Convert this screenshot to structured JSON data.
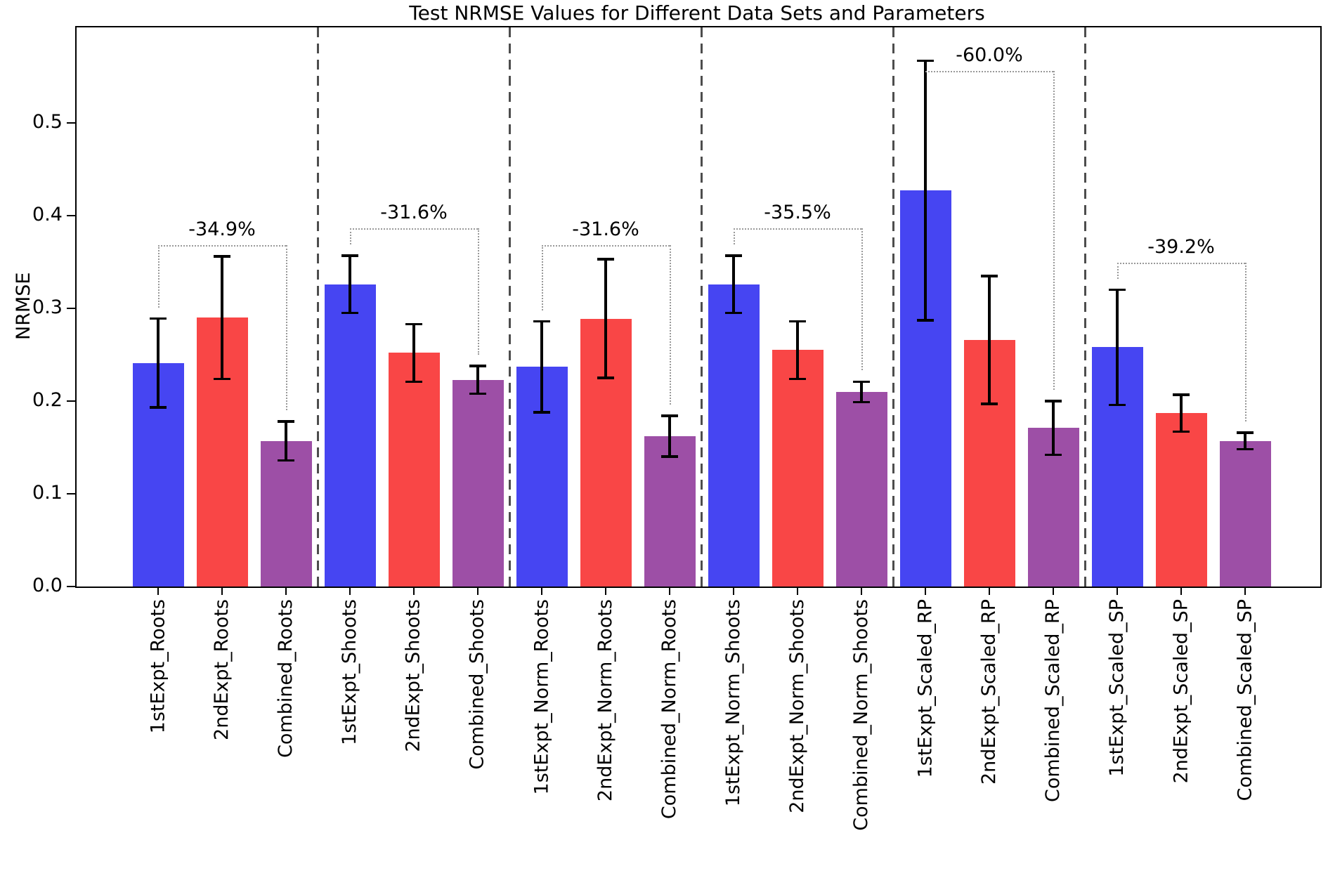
{
  "chart_data": {
    "type": "bar",
    "title": "Test NRMSE Values for Different Data Sets and Parameters",
    "xlabel": "",
    "ylabel": "NRMSE",
    "ylim": [
      0,
      0.603
    ],
    "yticks": [
      "0.0",
      "0.1",
      "0.2",
      "0.3",
      "0.4",
      "0.5"
    ],
    "grid": false,
    "legend": null,
    "categories": [
      "1stExpt_Roots",
      "2ndExpt_Roots",
      "Combined_Roots",
      "1stExpt_Shoots",
      "2ndExpt_Shoots",
      "Combined_Shoots",
      "1stExpt_Norm_Roots",
      "2ndExpt_Norm_Roots",
      "Combined_Norm_Roots",
      "1stExpt_Norm_Shoots",
      "2ndExpt_Norm_Shoots",
      "Combined_Norm_Shoots",
      "1stExpt_Scaled_RP",
      "2ndExpt_Scaled_RP",
      "Combined_Scaled_RP",
      "1stExpt_Scaled_SP",
      "2ndExpt_Scaled_SP",
      "Combined_Scaled_SP"
    ],
    "values": [
      0.241,
      0.29,
      0.157,
      0.326,
      0.252,
      0.223,
      0.237,
      0.289,
      0.162,
      0.326,
      0.255,
      0.21,
      0.427,
      0.266,
      0.171,
      0.258,
      0.187,
      0.157
    ],
    "yerr": [
      0.048,
      0.066,
      0.021,
      0.031,
      0.031,
      0.015,
      0.049,
      0.064,
      0.022,
      0.031,
      0.031,
      0.011,
      0.14,
      0.069,
      0.029,
      0.062,
      0.02,
      0.009
    ],
    "color_cycle": [
      "#4645f2",
      "#f94646",
      "#9d4fa6"
    ],
    "error_bar_color": "#000000",
    "separator_color": "#4d4d4d",
    "bracket_color": "#999999",
    "group_separators_x": [
      2.5,
      5.5,
      8.5,
      11.5,
      14.5
    ],
    "annotations": [
      {
        "label": "-34.9%",
        "from_bar": 0,
        "to_bar": 2,
        "line_y": 0.368
      },
      {
        "label": "-31.6%",
        "from_bar": 3,
        "to_bar": 5,
        "line_y": 0.386
      },
      {
        "label": "-31.6%",
        "from_bar": 6,
        "to_bar": 8,
        "line_y": 0.368
      },
      {
        "label": "-35.5%",
        "from_bar": 9,
        "to_bar": 11,
        "line_y": 0.386
      },
      {
        "label": "-60.0%",
        "from_bar": 12,
        "to_bar": 14,
        "line_y": 0.556
      },
      {
        "label": "-39.2%",
        "from_bar": 15,
        "to_bar": 17,
        "line_y": 0.349
      }
    ]
  }
}
